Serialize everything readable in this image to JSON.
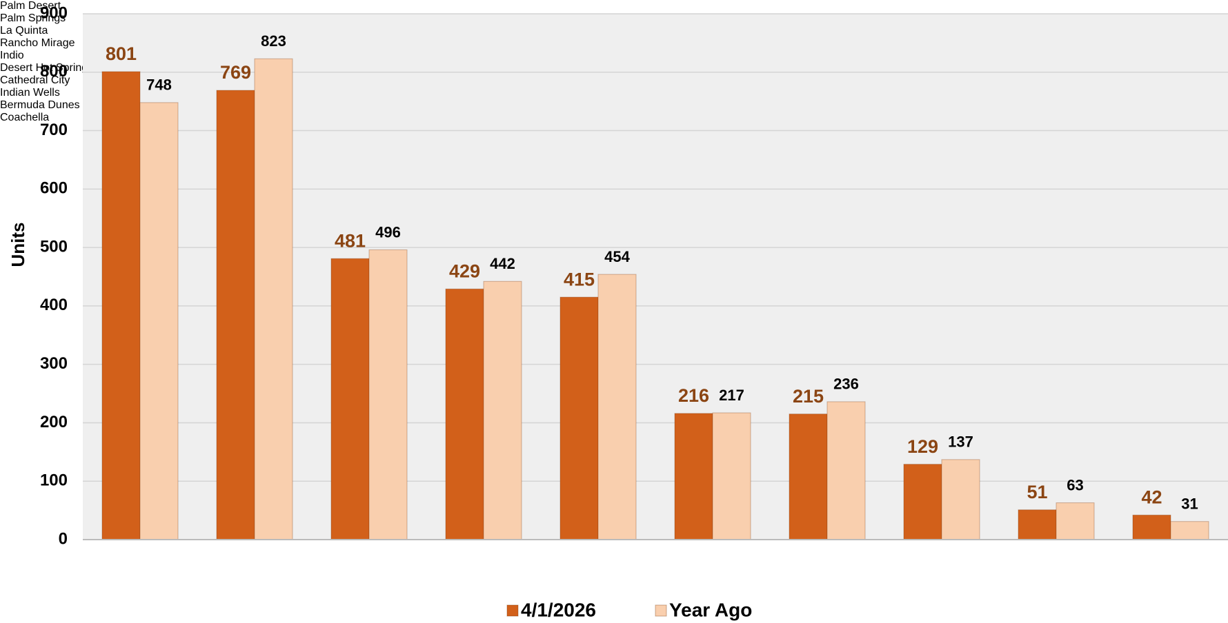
{
  "chart_data": {
    "type": "bar",
    "y_label": "Units",
    "categories": [
      "Palm Desert",
      "Palm Springs",
      "La Quinta",
      "Rancho\nMirage",
      "Indio",
      "Desert Hot\nSprings",
      "Cathedral City",
      "Indian Wells",
      "Bermuda\nDunes",
      "Coachella"
    ],
    "series": [
      {
        "name": "4/1/2026",
        "color": "#d2601a",
        "label_color": "#8b4513",
        "values": [
          801,
          769,
          481,
          429,
          415,
          216,
          215,
          129,
          51,
          42
        ]
      },
      {
        "name": "Year Ago",
        "color": "#f9cfae",
        "label_color": "#000000",
        "values": [
          748,
          823,
          496,
          442,
          454,
          217,
          236,
          137,
          63,
          31
        ]
      }
    ],
    "ylim": [
      0,
      900
    ],
    "yticks": [
      0,
      100,
      200,
      300,
      400,
      500,
      600,
      700,
      800,
      900
    ],
    "grid": true,
    "legend": "bottom"
  }
}
